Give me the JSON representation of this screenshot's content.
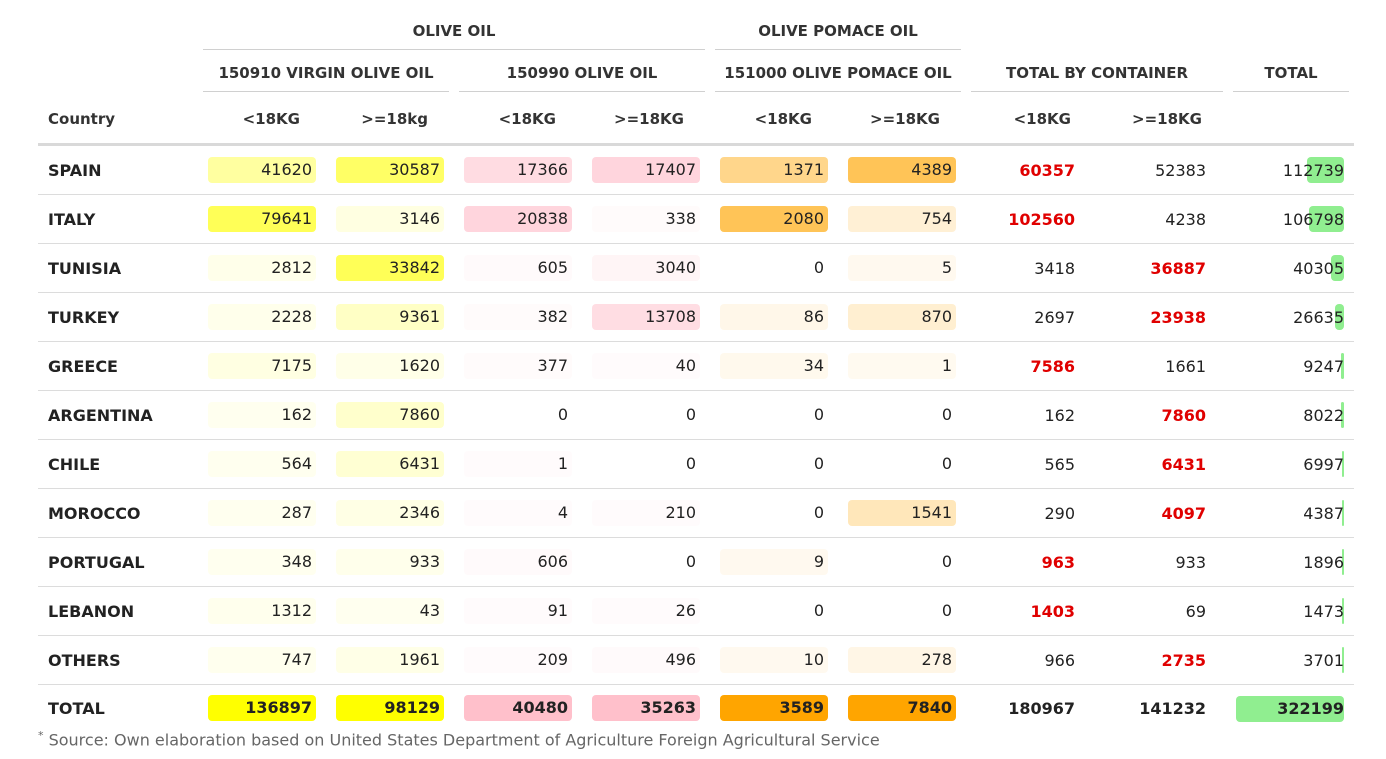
{
  "headers": {
    "group_olive": "OLIVE OIL",
    "group_pomace": "OLIVE POMACE OIL",
    "sub_virgin": "150910 VIRGIN OLIVE OIL",
    "sub_olive": "150990 OLIVE OIL",
    "sub_pomace": "151000 OLIVE POMACE OIL",
    "sub_container": "TOTAL BY CONTAINER",
    "sub_total": "TOTAL",
    "country": "Country",
    "c1": "<18KG",
    "c2": ">=18kg",
    "c3": "<18KG",
    "c4": ">=18KG",
    "c5": "<18KG",
    "c6": ">=18KG",
    "c7": "<18KG",
    "c8": ">=18KG"
  },
  "rows": [
    {
      "country": "SPAIN",
      "values": [
        "41620",
        "30587",
        "17366",
        "17407",
        "1371",
        "4389",
        "60357",
        "52383",
        "112739"
      ]
    },
    {
      "country": "ITALY",
      "values": [
        "79641",
        "3146",
        "20838",
        "338",
        "2080",
        "754",
        "102560",
        "4238",
        "106798"
      ]
    },
    {
      "country": "TUNISIA",
      "values": [
        "2812",
        "33842",
        "605",
        "3040",
        "0",
        "5",
        "3418",
        "36887",
        "40305"
      ]
    },
    {
      "country": "TURKEY",
      "values": [
        "2228",
        "9361",
        "382",
        "13708",
        "86",
        "870",
        "2697",
        "23938",
        "26635"
      ]
    },
    {
      "country": "GREECE",
      "values": [
        "7175",
        "1620",
        "377",
        "40",
        "34",
        "1",
        "7586",
        "1661",
        "9247"
      ]
    },
    {
      "country": "ARGENTINA",
      "values": [
        "162",
        "7860",
        "0",
        "0",
        "0",
        "0",
        "162",
        "7860",
        "8022"
      ]
    },
    {
      "country": "CHILE",
      "values": [
        "564",
        "6431",
        "1",
        "0",
        "0",
        "0",
        "565",
        "6431",
        "6997"
      ]
    },
    {
      "country": "MOROCCO",
      "values": [
        "287",
        "2346",
        "4",
        "210",
        "0",
        "1541",
        "290",
        "4097",
        "4387"
      ]
    },
    {
      "country": "PORTUGAL",
      "values": [
        "348",
        "933",
        "606",
        "0",
        "9",
        "0",
        "963",
        "933",
        "1896"
      ]
    },
    {
      "country": "LEBANON",
      "values": [
        "1312",
        "43",
        "91",
        "26",
        "0",
        "0",
        "1403",
        "69",
        "1473"
      ]
    },
    {
      "country": "OTHERS",
      "values": [
        "747",
        "1961",
        "209",
        "496",
        "10",
        "278",
        "966",
        "2735",
        "3701"
      ]
    }
  ],
  "total_row": {
    "country": "TOTAL",
    "values": [
      "136897",
      "98129",
      "40480",
      "35263",
      "3589",
      "7840",
      "180967",
      "141232",
      "322199"
    ]
  },
  "colors": {
    "virgin": "#ffff00",
    "olive": "#ffc0cb",
    "pomace": "#ffa500",
    "total_bar": "#90ee90",
    "highlight": "#e00000"
  },
  "footnote": {
    "mark": "*",
    "text": " Source: Own elaboration based on United States Department of Agriculture Foreign Agricultural Service"
  }
}
